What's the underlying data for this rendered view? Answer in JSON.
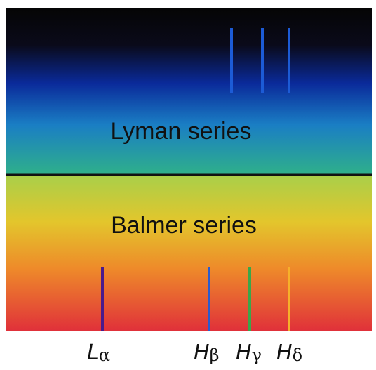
{
  "panels": [
    {
      "title": "Lyman series"
    },
    {
      "title": "Balmer series"
    }
  ],
  "labels": [
    {
      "letter": "L",
      "greek": "α"
    },
    {
      "letter": "H",
      "greek": "β"
    },
    {
      "letter": "H",
      "greek": "γ"
    },
    {
      "letter": "H",
      "greek": "δ"
    }
  ]
}
